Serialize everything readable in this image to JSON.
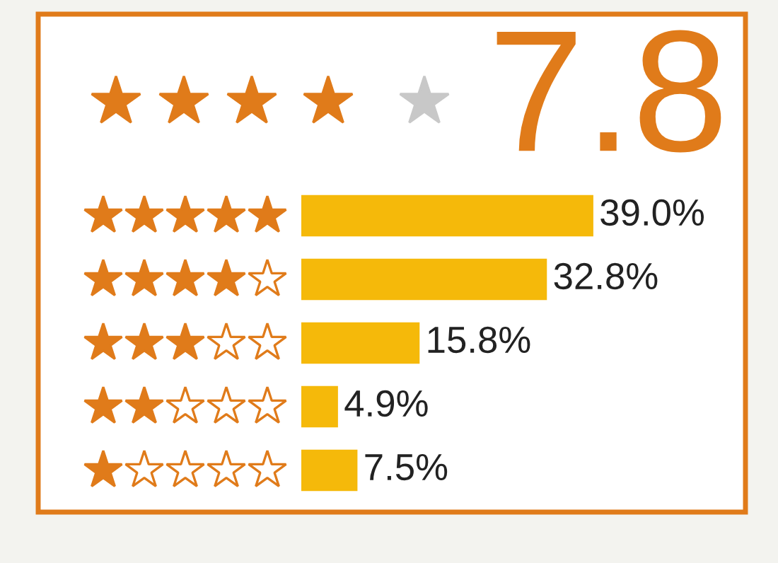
{
  "chart_data": {
    "type": "bar",
    "orientation": "horizontal",
    "title": "7.8",
    "categories": [
      null,
      null,
      null,
      null,
      null
    ],
    "values": [
      39.0,
      32.8,
      15.8,
      4.9,
      7.5
    ],
    "value_labels": [
      "39.0%",
      "32.8%",
      "15.8%",
      "4.9%",
      "7.5%"
    ],
    "color": "#f5b90a",
    "grid": false,
    "legend": false
  }
}
